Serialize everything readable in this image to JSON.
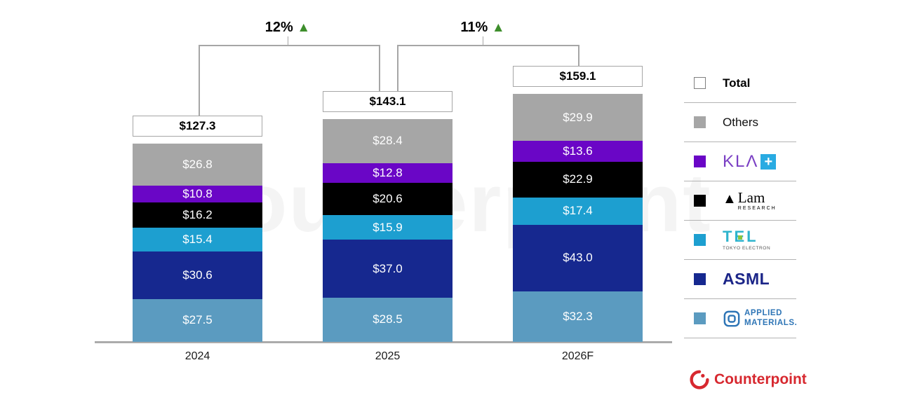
{
  "watermark": {
    "text": "Counterpoint"
  },
  "chart_data": {
    "type": "bar",
    "stacked": true,
    "categories": [
      "2024",
      "2025",
      "2026F"
    ],
    "value_prefix": "$",
    "totals": [
      127.3,
      143.1,
      159.1
    ],
    "series_order": "bottom-to-top",
    "series": [
      {
        "name": "Applied Materials",
        "key": "applied-materials",
        "color": "#5b9bc0",
        "values": [
          27.5,
          28.5,
          32.3
        ]
      },
      {
        "name": "ASML",
        "key": "asml",
        "color": "#16288f",
        "values": [
          30.6,
          37.0,
          43.0
        ]
      },
      {
        "name": "TEL Tokyo Electron",
        "key": "tel",
        "color": "#1d9fd0",
        "values": [
          15.4,
          15.9,
          17.4
        ]
      },
      {
        "name": "Lam Research",
        "key": "lam-research",
        "color": "#000000",
        "values": [
          16.2,
          20.6,
          22.9
        ]
      },
      {
        "name": "KLA",
        "key": "kla",
        "color": "#6a06c6",
        "values": [
          10.8,
          12.8,
          13.6
        ]
      },
      {
        "name": "Others",
        "key": "others",
        "color": "#a6a6a6",
        "values": [
          26.8,
          28.4,
          29.9
        ]
      }
    ],
    "growth_annotations": [
      {
        "label": "12%",
        "arrow": "▲",
        "from": "2024",
        "to": "2025"
      },
      {
        "label": "11%",
        "arrow": "▲",
        "from": "2025",
        "to": "2026F"
      }
    ],
    "legend_position": "right",
    "grid": false
  },
  "legend": {
    "total": {
      "label": "Total"
    },
    "others": {
      "label": "Others"
    },
    "kla": {
      "text": "KLΛ",
      "plus": "+"
    },
    "lam": {
      "name": "Lam",
      "sub": "RESEARCH"
    },
    "tel": {
      "name": "TEL",
      "sub": "TOKYO ELECTRON"
    },
    "asml": {
      "name": "ASML"
    },
    "amat": {
      "line1": "APPLIED",
      "line2": "MATERIALS."
    }
  },
  "colors": {
    "applied_materials": "#5b9bc0",
    "asml": "#16288f",
    "tel": "#1d9fd0",
    "lam": "#000000",
    "kla": "#6a06c6",
    "others": "#a6a6a6",
    "total_swatch": "#ffffff",
    "growth_green": "#3e8e2c",
    "bracket_gray": "#a6a6a6",
    "brand_red": "#d7282f"
  },
  "footer": {
    "brand": "Counterpoint"
  }
}
